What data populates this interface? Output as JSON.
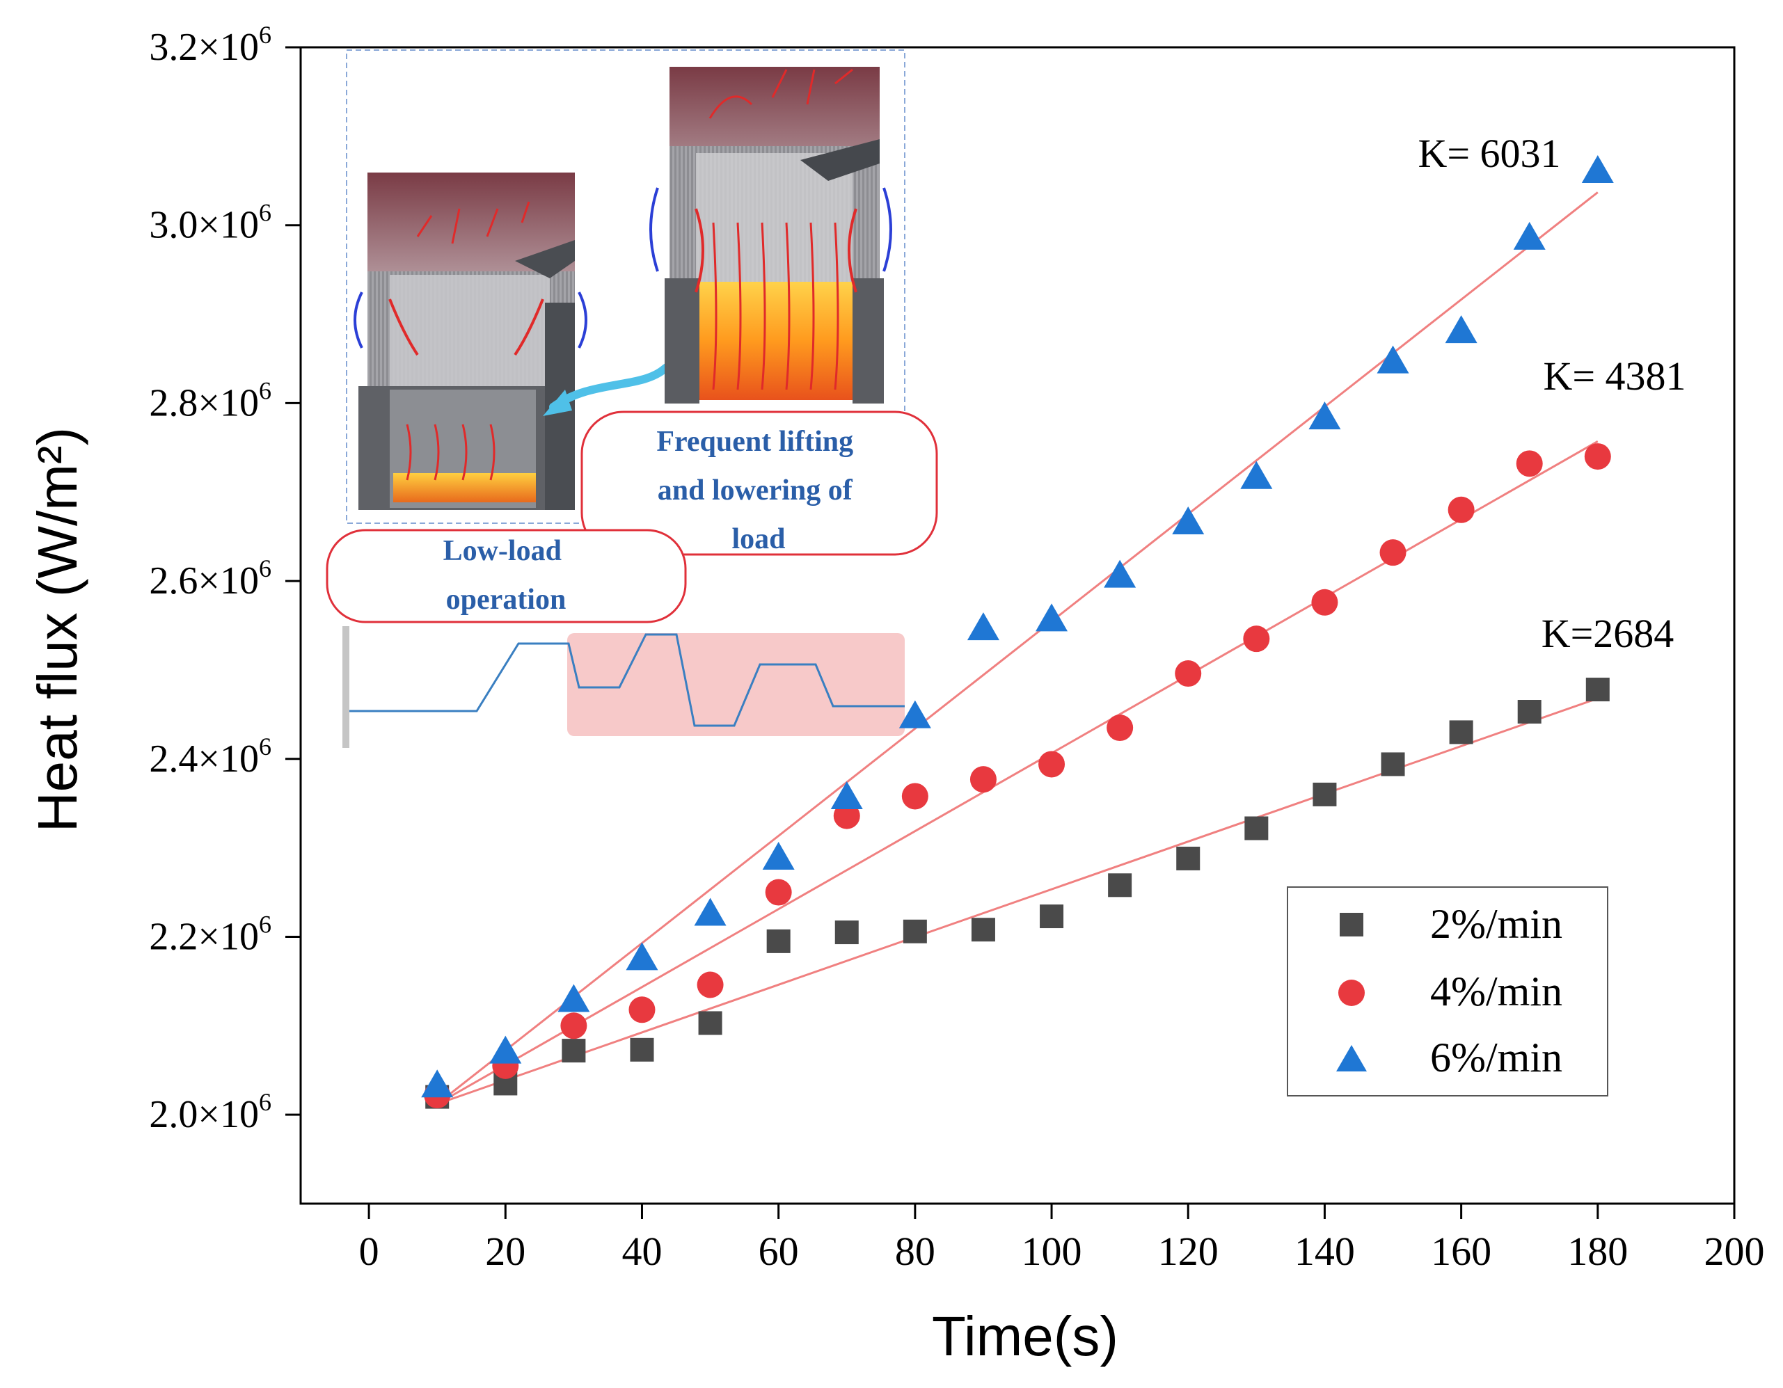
{
  "chart_data": {
    "type": "scatter",
    "title": "",
    "xlabel": "Time(s)",
    "ylabel": "Heat flux (W/m²)",
    "xlim": [
      -10,
      200
    ],
    "ylim": [
      1900000,
      3200000
    ],
    "x_ticks": [
      0,
      20,
      40,
      60,
      80,
      100,
      120,
      140,
      160,
      180,
      200
    ],
    "x_tick_labels": [
      "0",
      "20",
      "40",
      "60",
      "80",
      "100",
      "120",
      "140",
      "160",
      "180",
      "200"
    ],
    "y_ticks": [
      2000000,
      2200000,
      2400000,
      2600000,
      2800000,
      3000000,
      3200000
    ],
    "y_tick_labels": [
      {
        "mantissa": "2.0×10",
        "exp": "6"
      },
      {
        "mantissa": "2.2×10",
        "exp": "6"
      },
      {
        "mantissa": "2.4×10",
        "exp": "6"
      },
      {
        "mantissa": "2.6×10",
        "exp": "6"
      },
      {
        "mantissa": "2.8×10",
        "exp": "6"
      },
      {
        "mantissa": "3.0×10",
        "exp": "6"
      },
      {
        "mantissa": "3.2×10",
        "exp": "6"
      }
    ],
    "x": [
      10,
      20,
      30,
      40,
      50,
      60,
      70,
      80,
      90,
      100,
      110,
      120,
      130,
      140,
      150,
      160,
      170,
      180
    ],
    "series": [
      {
        "name": "2%/min",
        "marker": "square",
        "color": "#4a4a4a",
        "values": [
          2020000,
          2035000,
          2072000,
          2073000,
          2103000,
          2195000,
          2205000,
          2206000,
          2208000,
          2223000,
          2258000,
          2288000,
          2322000,
          2360000,
          2394000,
          2430000,
          2453000,
          2478000
        ],
        "fit": [
          [
            10,
            2012000
          ],
          [
            180,
            2468000
          ]
        ],
        "fit_label": "K=2684"
      },
      {
        "name": "4%/min",
        "marker": "circle",
        "color": "#e8393f",
        "values": [
          2022000,
          2055000,
          2100000,
          2118000,
          2146000,
          2250000,
          2336000,
          2358000,
          2377000,
          2394000,
          2435000,
          2496000,
          2535000,
          2576000,
          2632000,
          2680000,
          2732000,
          2740000
        ],
        "fit": [
          [
            10,
            2012000
          ],
          [
            180,
            2757000
          ]
        ],
        "fit_label": "K= 4381"
      },
      {
        "name": "6%/min",
        "marker": "triangle",
        "color": "#1f77d4",
        "values": [
          2032000,
          2070000,
          2128000,
          2175000,
          2225000,
          2288000,
          2356000,
          2447000,
          2546000,
          2556000,
          2605000,
          2665000,
          2716000,
          2783000,
          2846000,
          2880000,
          2985000,
          3060000
        ],
        "fit": [
          [
            10,
            2012000
          ],
          [
            180,
            3037000
          ]
        ],
        "fit_label": "K= 6031"
      }
    ],
    "fit_line_color": "#f08080",
    "legend_position": "bottom-right"
  },
  "inset": {
    "left_label": "Low-load operation",
    "right_label": "Frequent lifting and lowering of load",
    "load_profile_color": "#3a7fc1",
    "highlight_color": "#f7c9c9",
    "callout_color": "#e0303a",
    "label_color": "#2a5ea8"
  }
}
